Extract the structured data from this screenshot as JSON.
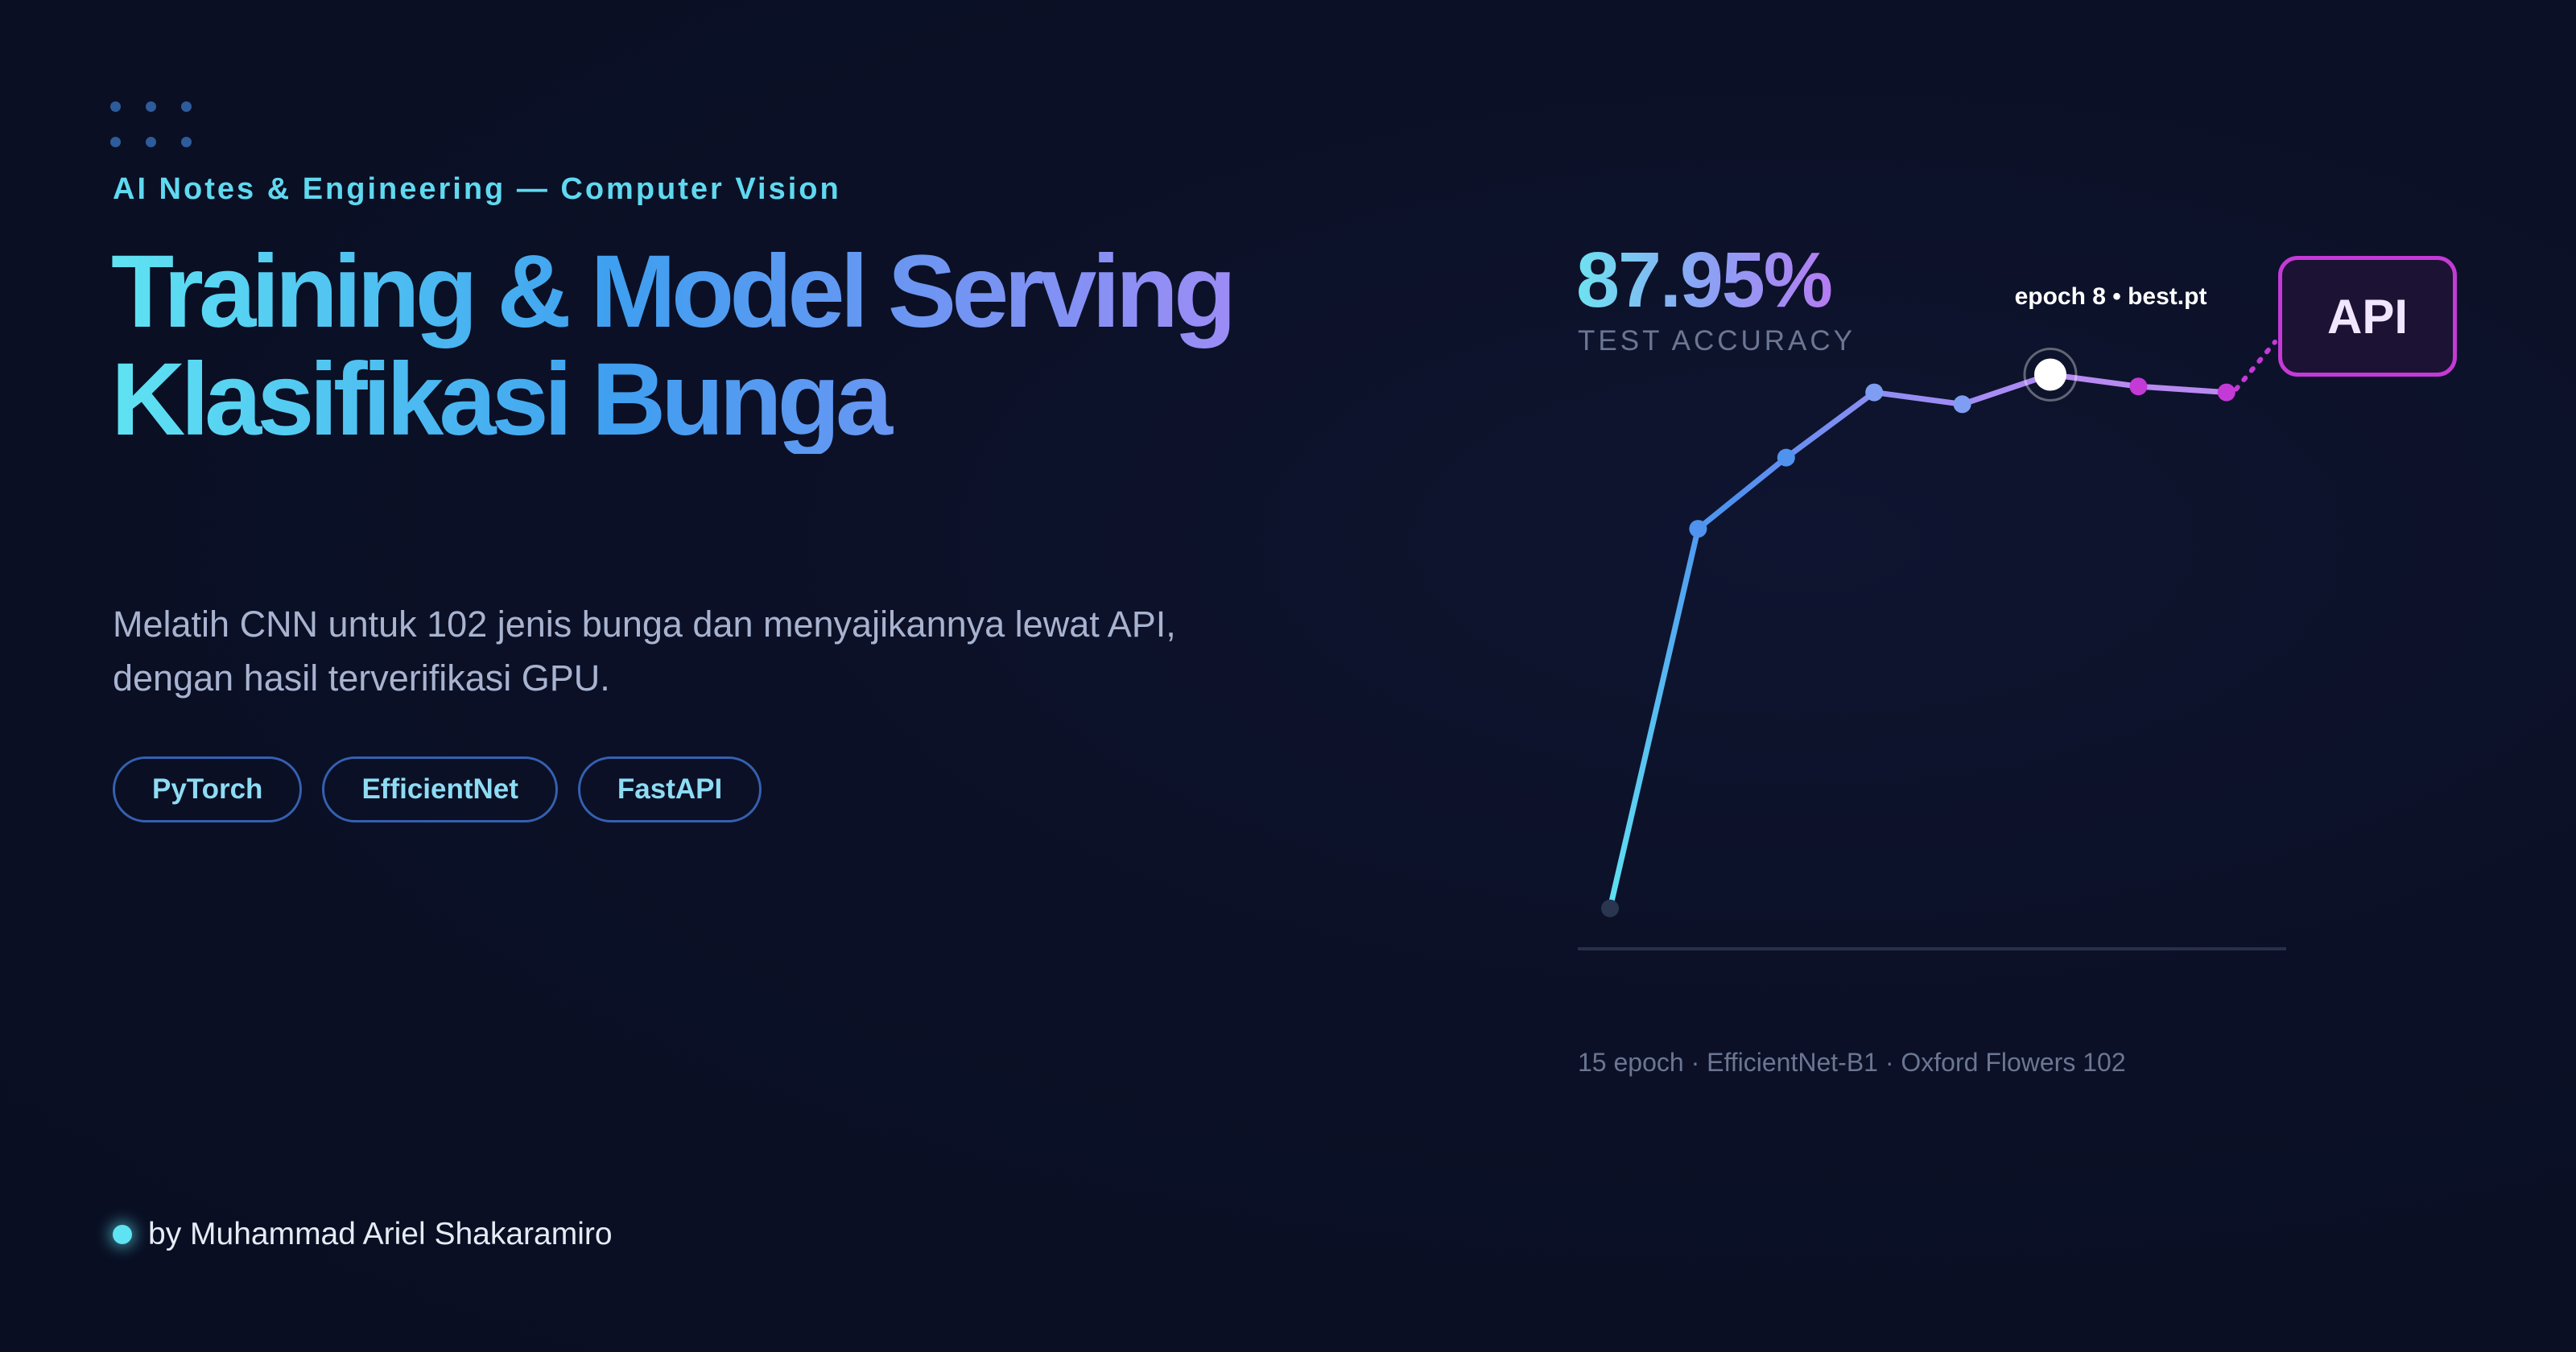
{
  "header": {
    "eyebrow": "AI Notes & Engineering — Computer Vision",
    "title_line1": "Training & Model Serving",
    "title_line2": "Klasifikasi Bunga"
  },
  "description": {
    "line1": "Melatih CNN untuk 102 jenis bunga dan menyajikannya lewat API,",
    "line2": "dengan hasil terverifikasi GPU."
  },
  "tags": [
    "PyTorch",
    "EfficientNet",
    "FastAPI"
  ],
  "author": "by Muhammad Ariel Shakaramiro",
  "metric": {
    "value": "87.95%",
    "label": "TEST ACCURACY"
  },
  "api_label": "API",
  "caption": "15 epoch · EfficientNet-B1 · Oxford Flowers 102",
  "colors": {
    "cyan": "#5fe3f2",
    "blue": "#4e90f0",
    "violet": "#a88cf4",
    "magenta": "#c43ad6",
    "background": "#0b1026"
  },
  "chart_data": {
    "type": "line",
    "annotation": "epoch 8 • best.pt",
    "highlight_index": 5,
    "x": [
      1,
      2,
      3,
      4,
      5,
      6,
      7,
      8
    ],
    "values": [
      2,
      66,
      78,
      89,
      87,
      92,
      90,
      89
    ],
    "ylim": [
      0,
      100
    ],
    "xlabel": "",
    "ylabel": "",
    "grid": false
  }
}
